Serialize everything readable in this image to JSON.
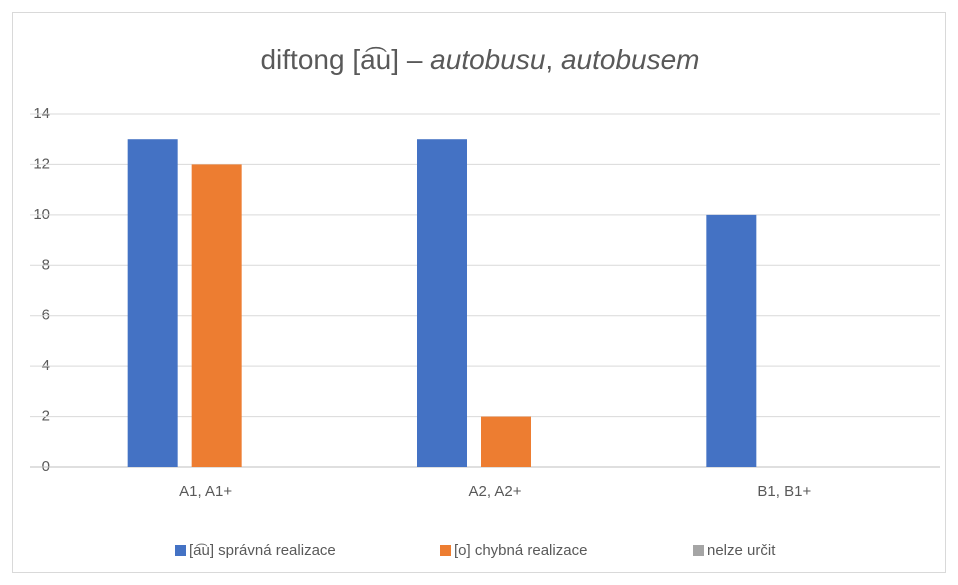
{
  "chart_data": {
    "type": "bar",
    "title": [
      "diftong [a͡u] – ",
      "autobusu",
      ", ",
      "autobusem"
    ],
    "categories": [
      "A1, A1+",
      "A2, A2+",
      "B1, B1+"
    ],
    "series": [
      {
        "name": "[a͡u] správná realizace",
        "color": "#4472c4",
        "values": [
          13,
          13,
          10
        ]
      },
      {
        "name": "[o] chybná realizace",
        "color": "#ed7d31",
        "values": [
          12,
          2,
          0
        ]
      },
      {
        "name": "nelze určit",
        "color": "#a5a5a5",
        "values": [
          0,
          0,
          0
        ]
      }
    ],
    "ylim": [
      0,
      14
    ],
    "yticks": [
      0,
      2,
      4,
      6,
      8,
      10,
      12,
      14
    ],
    "grid": true,
    "legend": "bottom"
  }
}
